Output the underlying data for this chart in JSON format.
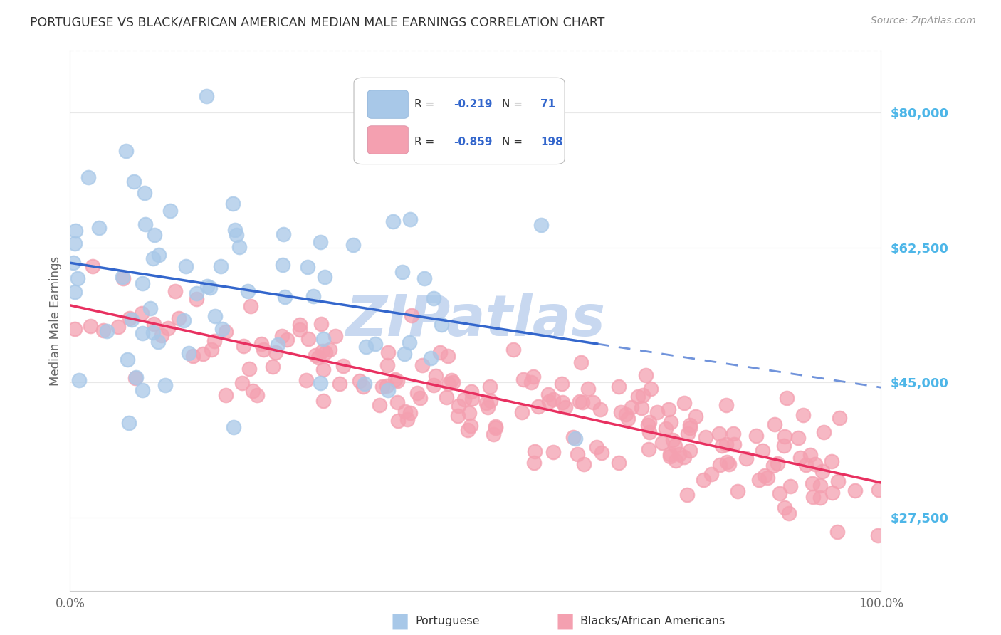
{
  "title": "PORTUGUESE VS BLACK/AFRICAN AMERICAN MEDIAN MALE EARNINGS CORRELATION CHART",
  "source": "Source: ZipAtlas.com",
  "ylabel": "Median Male Earnings",
  "y_ticks": [
    27500,
    45000,
    62500,
    80000
  ],
  "y_tick_labels": [
    "$27,500",
    "$45,000",
    "$62,500",
    "$80,000"
  ],
  "y_tick_color": "#4db6e8",
  "scatter_color_blue": "#a8c8e8",
  "scatter_color_pink": "#f4a0b0",
  "line_color_blue": "#3366cc",
  "line_color_pink": "#e83060",
  "background_color": "#ffffff",
  "watermark_text": "ZIPatlas",
  "watermark_color": "#c8d8f0",
  "grid_color": "#e8e8e8",
  "title_color": "#333333",
  "source_color": "#999999",
  "axis_color": "#cccccc",
  "x_min": 0.0,
  "x_max": 1.0,
  "y_min": 18000,
  "y_max": 88000,
  "blue_line_x0": 0.0,
  "blue_line_y0": 60500,
  "blue_line_x1": 0.65,
  "blue_line_y1": 50000,
  "pink_line_x0": 0.0,
  "pink_line_y0": 55000,
  "pink_line_x1": 1.0,
  "pink_line_y1": 32000,
  "blue_N": 71,
  "pink_N": 198
}
